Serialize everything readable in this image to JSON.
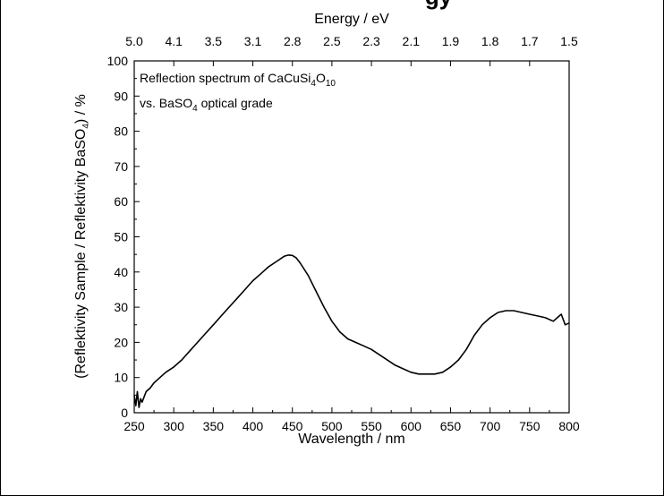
{
  "chart_data": {
    "type": "line",
    "title_fragment": "gy",
    "xlabel": "Wavelength / nm",
    "x2label": "Energy / eV",
    "ylabel": {
      "before": "(Reflektivity Sample / Reflektivity BaSO",
      "sub": "4",
      "after": ") / %"
    },
    "xlim": [
      250,
      800
    ],
    "ylim": [
      0,
      100
    ],
    "x_ticks": [
      250,
      300,
      350,
      400,
      450,
      500,
      550,
      600,
      650,
      700,
      750,
      800
    ],
    "y_ticks": [
      0,
      10,
      20,
      30,
      40,
      50,
      60,
      70,
      80,
      90,
      100
    ],
    "top_ticks": [
      {
        "label": "5.0",
        "x": 250
      },
      {
        "label": "4.1",
        "x": 300
      },
      {
        "label": "3.5",
        "x": 350
      },
      {
        "label": "3.1",
        "x": 400
      },
      {
        "label": "2.8",
        "x": 450
      },
      {
        "label": "2.5",
        "x": 500
      },
      {
        "label": "2.3",
        "x": 550
      },
      {
        "label": "2.1",
        "x": 600
      },
      {
        "label": "1.9",
        "x": 650
      },
      {
        "label": "1.8",
        "x": 700
      },
      {
        "label": "1.7",
        "x": 750
      },
      {
        "label": "1.5",
        "x": 800
      }
    ],
    "annotation": {
      "line1": {
        "text": "Reflection spectrum of CaCuSi",
        "sub1": "4",
        "mid": "O",
        "sub2": "10"
      },
      "line2": {
        "text": "vs. BaSO",
        "sub": "4",
        "after": " optical grade"
      }
    },
    "series": [
      {
        "color": "#000000",
        "x": [
          250,
          252,
          254,
          256,
          258,
          260,
          265,
          270,
          275,
          280,
          285,
          290,
          300,
          310,
          320,
          330,
          340,
          350,
          360,
          370,
          380,
          390,
          400,
          410,
          420,
          430,
          440,
          445,
          450,
          455,
          460,
          470,
          480,
          490,
          500,
          510,
          520,
          530,
          540,
          550,
          560,
          570,
          580,
          590,
          600,
          610,
          620,
          630,
          640,
          650,
          660,
          670,
          680,
          690,
          700,
          710,
          720,
          730,
          740,
          750,
          760,
          770,
          780,
          785,
          790,
          795,
          800
        ],
        "y": [
          5,
          2,
          6,
          1.5,
          4,
          3,
          6,
          7,
          8.5,
          9.5,
          10.5,
          11.5,
          13,
          15,
          17.5,
          20,
          22.5,
          25,
          27.5,
          30,
          32.5,
          35,
          37.5,
          39.5,
          41.5,
          43,
          44.5,
          44.8,
          44.7,
          44,
          42.5,
          39,
          34.5,
          30,
          26,
          23,
          21,
          20,
          19,
          18,
          16.5,
          15,
          13.5,
          12.5,
          11.5,
          11,
          11,
          11,
          11.5,
          13,
          15,
          18,
          22,
          25,
          27,
          28.5,
          29,
          29,
          28.5,
          28,
          27.5,
          27,
          26,
          27,
          28,
          25,
          25.5
        ]
      }
    ]
  }
}
